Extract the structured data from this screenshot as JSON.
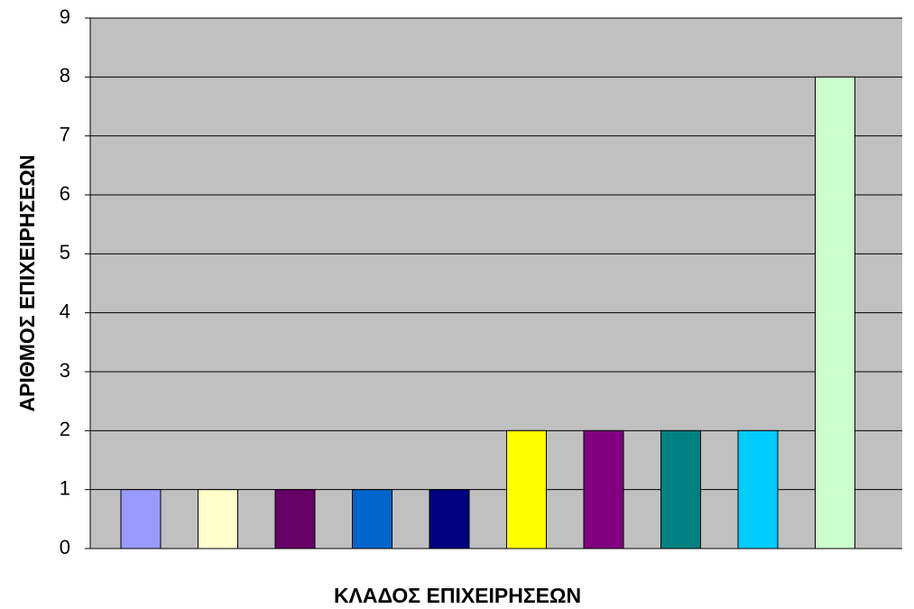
{
  "chart_data": {
    "type": "bar",
    "x_label": "ΚΛΑΔΟΣ ΕΠΙΧΕΙΡΗΣΕΩΝ",
    "y_label": "ΑΡΙΘΜΟΣ ΕΠΙΧΕΙΡΗΣΕΩΝ",
    "categories": [
      null,
      null,
      null,
      null,
      null,
      null,
      null,
      null,
      null,
      null
    ],
    "values": [
      1,
      1,
      1,
      1,
      1,
      2,
      2,
      2,
      2,
      8
    ],
    "colors": [
      "#9999ff",
      "#ffffcc",
      "#660066",
      "#0066cc",
      "#000080",
      "#ffff00",
      "#800080",
      "#008080",
      "#00ccff",
      "#ccffcc"
    ],
    "ylim": [
      0,
      9
    ],
    "yticks": [
      0,
      1,
      2,
      3,
      4,
      5,
      6,
      7,
      8,
      9
    ],
    "grid": true
  }
}
